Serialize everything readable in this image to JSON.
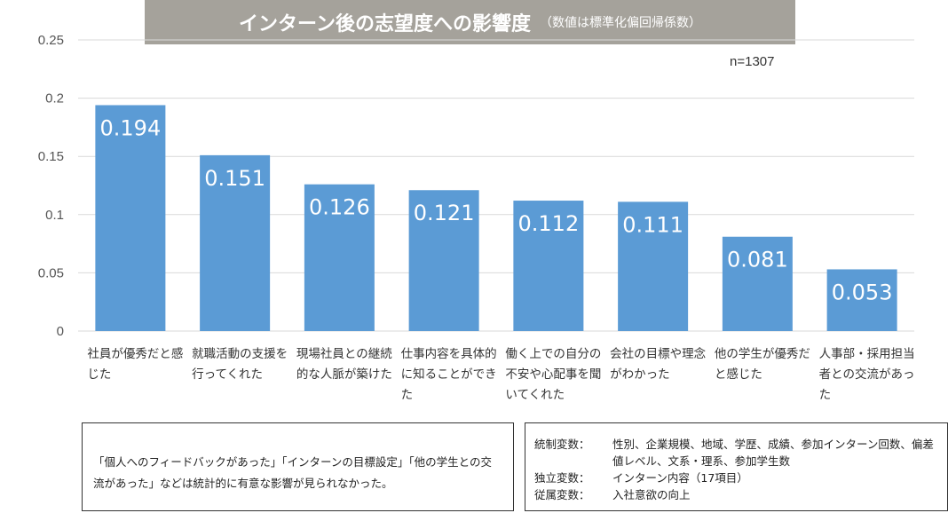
{
  "title": {
    "main": "インターン後の志望度への影響度",
    "sub": "（数値は標準化偏回帰係数）"
  },
  "sample_label": "n=1307",
  "colors": {
    "bar": "#5b9bd5",
    "title_bg": "#a5a29b",
    "gridline": "#d9d9d9",
    "value_label": "#ffffff"
  },
  "chart_data": {
    "type": "bar",
    "categories": [
      "社員が優秀だと感じた",
      "就職活動の支援を行ってくれた",
      "現場社員との継続的な人脈が築けた",
      "仕事内容を具体的に知ることができた",
      "働く上での自分の不安や心配事を聞いてくれた",
      "会社の目標や理念がわかった",
      "他の学生が優秀だと感じた",
      "人事部・採用担当者との交流があった"
    ],
    "values": [
      0.194,
      0.151,
      0.126,
      0.121,
      0.112,
      0.111,
      0.081,
      0.053
    ],
    "value_labels": [
      "0.194",
      "0.151",
      "0.126",
      "0.121",
      "0.112",
      "0.111",
      "0.081",
      "0.053"
    ],
    "ylim": [
      0,
      0.25
    ],
    "y_ticks": [
      "0",
      "0.05",
      "0.1",
      "0.15",
      "0.2",
      "0.25"
    ],
    "grid": true
  },
  "notes": {
    "left": "「個人へのフィードバックがあった」「インターンの目標設定」「他の学生との交流があった」などは統計的に有意な影響が見られなかった。",
    "right": [
      {
        "key": "統制変数：",
        "value": "性別、企業規模、地域、学歴、成績、参加インターン回数、偏差値レベル、文系・理系、参加学生数"
      },
      {
        "key": "独立変数：",
        "value": "インターン内容（17項目）"
      },
      {
        "key": "従属変数：",
        "value": "入社意欲の向上"
      }
    ]
  }
}
